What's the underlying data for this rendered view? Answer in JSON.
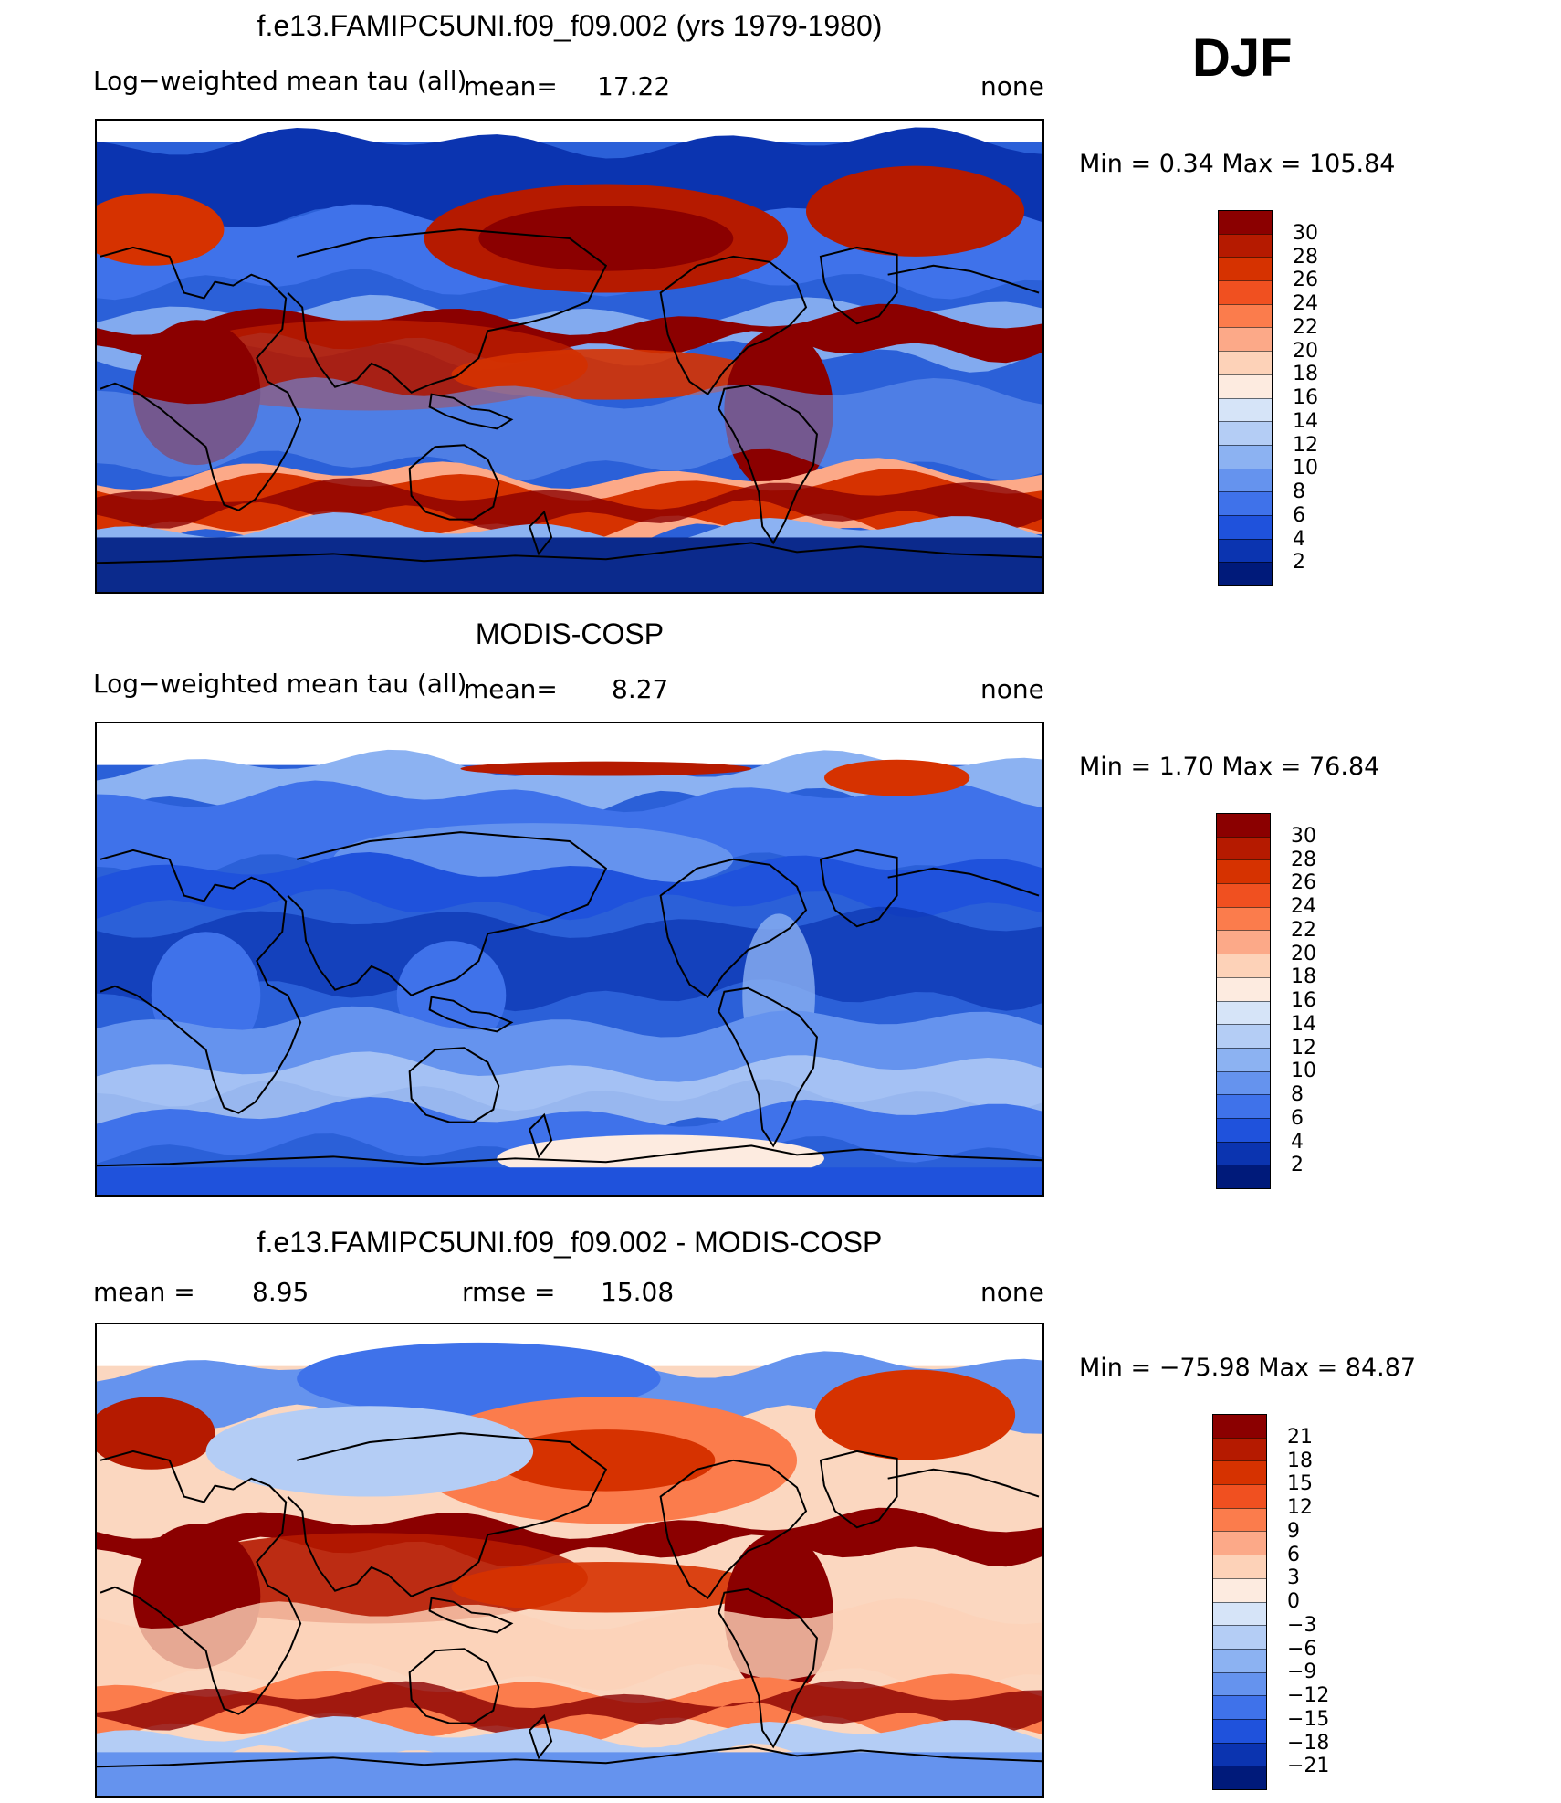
{
  "season": "DJF",
  "panels": [
    {
      "title": "f.e13.FAMIPC5UNI.f09_f09.002 (yrs 1979-1980)",
      "left_label": "Log−weighted mean tau (all)",
      "mean_label": "mean=",
      "mean_value": "17.22",
      "right_label": "none",
      "minmax": "Min =    0.34 Max =  105.84",
      "colorbar_labels": [
        "30",
        "28",
        "26",
        "24",
        "22",
        "20",
        "18",
        "16",
        "14",
        "12",
        "10",
        "8",
        "6",
        "4",
        "2"
      ],
      "colors": [
        "#8b0000",
        "#b51a00",
        "#d63200",
        "#f05020",
        "#fb7c4c",
        "#fca988",
        "#fdd2b8",
        "#fdebe0",
        "#d6e4f8",
        "#b4cdf5",
        "#8cb2f2",
        "#6593ee",
        "#3f72ea",
        "#1f52dc",
        "#0b34b0",
        "#001a7a"
      ],
      "field": "model"
    },
    {
      "title": "MODIS-COSP",
      "left_label": "Log−weighted mean tau (all)",
      "mean_label": "mean=",
      "mean_value": "8.27",
      "right_label": "none",
      "minmax": "Min =    1.70 Max =   76.84",
      "colorbar_labels": [
        "30",
        "28",
        "26",
        "24",
        "22",
        "20",
        "18",
        "16",
        "14",
        "12",
        "10",
        "8",
        "6",
        "4",
        "2"
      ],
      "colors": [
        "#8b0000",
        "#b51a00",
        "#d63200",
        "#f05020",
        "#fb7c4c",
        "#fca988",
        "#fdd2b8",
        "#fdebe0",
        "#d6e4f8",
        "#b4cdf5",
        "#8cb2f2",
        "#6593ee",
        "#3f72ea",
        "#1f52dc",
        "#0b34b0",
        "#001a7a"
      ],
      "field": "obs"
    },
    {
      "title": "f.e13.FAMIPC5UNI.f09_f09.002 - MODIS-COSP",
      "left_label": "mean =",
      "mean_value": "8.95",
      "rmse_label": "rmse =",
      "rmse_value": "15.08",
      "right_label": "none",
      "minmax": "Min = −75.98 Max =   84.87",
      "colorbar_labels": [
        "21",
        "18",
        "15",
        "12",
        "9",
        "6",
        "3",
        "0",
        "−3",
        "−6",
        "−9",
        "−12",
        "−15",
        "−18",
        "−21"
      ],
      "colors": [
        "#8b0000",
        "#b51a00",
        "#d63200",
        "#f05020",
        "#fb7c4c",
        "#fca988",
        "#fdd2b8",
        "#fdebe0",
        "#d6e4f8",
        "#b4cdf5",
        "#8cb2f2",
        "#6593ee",
        "#3f72ea",
        "#1f52dc",
        "#0b34b0",
        "#001a7a"
      ],
      "field": "diff"
    }
  ]
}
